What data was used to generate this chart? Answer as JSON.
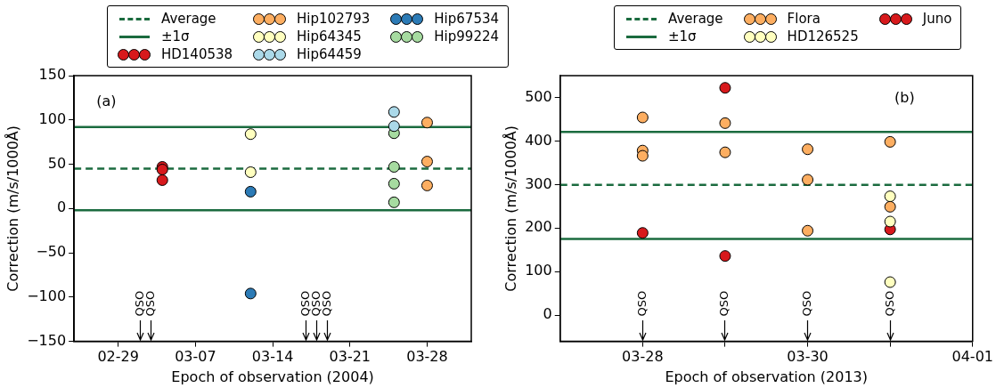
{
  "chart_data": [
    {
      "type": "scatter",
      "xlabel": "Epoch of observation (2004)",
      "ylabel": "Correction (m/s/1000Å)",
      "xlim": [
        "2004-02-25",
        "2004-04-01"
      ],
      "ylim": [
        -150,
        150
      ],
      "xticks": [
        {
          "value": "2004-02-29",
          "label": "02-29"
        },
        {
          "value": "2004-03-07",
          "label": "03-07"
        },
        {
          "value": "2004-03-14",
          "label": "03-14"
        },
        {
          "value": "2004-03-21",
          "label": "03-21"
        },
        {
          "value": "2004-03-28",
          "label": "03-28"
        }
      ],
      "yticks": [
        -150,
        -100,
        -50,
        0,
        50,
        100,
        150
      ],
      "marker": "circle",
      "legend": "top",
      "series": [
        {
          "name": "HD140538",
          "color": "#d7191c",
          "x": [
            "2004-03-04",
            "2004-03-04",
            "2004-03-04"
          ],
          "values": [
            47,
            44,
            32
          ]
        },
        {
          "name": "Hip102793",
          "color": "#fdae61",
          "x": [
            "2004-03-28",
            "2004-03-28",
            "2004-03-28"
          ],
          "values": [
            97,
            53,
            26
          ]
        },
        {
          "name": "Hip64345",
          "color": "#ffffbf",
          "x": [
            "2004-03-12",
            "2004-03-12"
          ],
          "values": [
            84,
            41
          ]
        },
        {
          "name": "Hip64459",
          "color": "#abd9e9",
          "x": [
            "2004-03-25",
            "2004-03-25"
          ],
          "values": [
            109,
            93
          ]
        },
        {
          "name": "Hip67534",
          "color": "#2c7bb6",
          "x": [
            "2004-03-12",
            "2004-03-12"
          ],
          "values": [
            19,
            -96
          ]
        },
        {
          "name": "Hip99224",
          "color": "#a6dba0",
          "x": [
            "2004-03-25",
            "2004-03-25",
            "2004-03-25",
            "2004-03-25"
          ],
          "values": [
            85,
            47,
            28,
            7
          ]
        }
      ],
      "ref_lines": [
        {
          "axis": "y",
          "value": 45,
          "label": "Average",
          "color": "#1b6b3f",
          "line_style": "dashed"
        },
        {
          "axis": "x",
          "value": "2004-03-02",
          "label": "QSO",
          "color": "#000000",
          "line_style": "solid"
        },
        {
          "axis": "x",
          "value": "2004-03-03",
          "label": "QSO",
          "color": "#000000",
          "line_style": "solid"
        },
        {
          "axis": "x",
          "value": "2004-03-17",
          "label": "QSO",
          "color": "#000000",
          "line_style": "solid"
        },
        {
          "axis": "x",
          "value": "2004-03-18",
          "label": "QSO",
          "color": "#000000",
          "line_style": "solid"
        },
        {
          "axis": "x",
          "value": "2004-03-19",
          "label": "QSO",
          "color": "#000000",
          "line_style": "solid"
        },
        {
          "axis": "y",
          "value": 92,
          "label": "±1σ",
          "color": "#1b6b3f",
          "line_style": "solid"
        },
        {
          "axis": "y",
          "value": -2,
          "color": "#1b6b3f",
          "line_style": "solid"
        }
      ],
      "annotations": [
        "(a)"
      ]
    },
    {
      "type": "scatter",
      "xlabel": "Epoch of observation (2013)",
      "ylabel": "Correction (m/s/1000Å)",
      "xlim": [
        "2013-03-27",
        "2013-04-01"
      ],
      "ylim": [
        -60,
        550
      ],
      "xticks": [
        {
          "value": "2013-03-28",
          "label": "03-28"
        },
        {
          "value": "2013-03-29",
          "label": null
        },
        {
          "value": "2013-03-30",
          "label": "03-30"
        },
        {
          "value": "2013-03-31",
          "label": null
        },
        {
          "value": "2013-04-01",
          "label": "04-01"
        }
      ],
      "yticks": [
        0,
        100,
        200,
        300,
        400,
        500
      ],
      "marker": "circle",
      "legend": "top",
      "series": [
        {
          "name": "Flora",
          "color": "#fdae61",
          "x": [
            "2013-03-28",
            "2013-03-28",
            "2013-03-28",
            "2013-03-29",
            "2013-03-29",
            "2013-03-30",
            "2013-03-30",
            "2013-03-30",
            "2013-03-31",
            "2013-03-31"
          ],
          "values": [
            454,
            378,
            366,
            441,
            374,
            381,
            311,
            194,
            398,
            249
          ]
        },
        {
          "name": "HD126525",
          "color": "#ffffbf",
          "x": [
            "2013-03-31",
            "2013-03-31",
            "2013-03-31"
          ],
          "values": [
            273,
            215,
            76
          ]
        },
        {
          "name": "Juno",
          "color": "#d7191c",
          "x": [
            "2013-03-28",
            "2013-03-29",
            "2013-03-29",
            "2013-03-31"
          ],
          "values": [
            189,
            522,
            136,
            197
          ]
        }
      ],
      "ref_lines": [
        {
          "axis": "y",
          "value": 299,
          "label": "Average",
          "color": "#1b6b3f",
          "line_style": "dashed"
        },
        {
          "axis": "x",
          "value": "2013-03-28",
          "label": "QSO",
          "color": "#000000",
          "line_style": "solid"
        },
        {
          "axis": "x",
          "value": "2013-03-29",
          "label": "QSO",
          "color": "#000000",
          "line_style": "solid"
        },
        {
          "axis": "x",
          "value": "2013-03-30",
          "label": "QSO",
          "color": "#000000",
          "line_style": "solid"
        },
        {
          "axis": "x",
          "value": "2013-03-31",
          "label": "QSO",
          "color": "#000000",
          "line_style": "solid"
        },
        {
          "axis": "y",
          "value": 421,
          "label": "±1σ",
          "color": "#1b6b3f",
          "line_style": "solid"
        },
        {
          "axis": "y",
          "value": 175,
          "color": "#1b6b3f",
          "line_style": "solid"
        }
      ],
      "annotations": [
        "(b)"
      ]
    }
  ]
}
